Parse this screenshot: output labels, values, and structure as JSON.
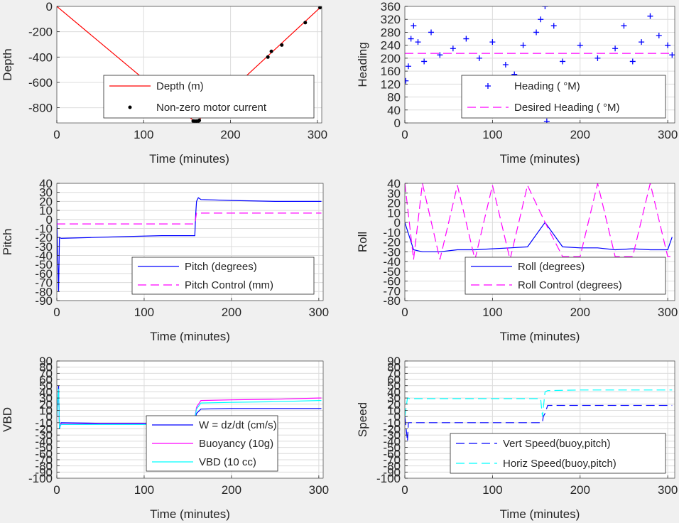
{
  "chart_data": [
    {
      "type": "line",
      "xlabel": "Time (minutes)",
      "ylabel": "Depth",
      "xlim": [
        0,
        305
      ],
      "ylim": [
        -920,
        0
      ],
      "xticks": [
        0,
        100,
        200,
        300
      ],
      "yticks": [
        0,
        -200,
        -400,
        -600,
        -800
      ],
      "legend_position": "bottom-center",
      "grid": true,
      "series": [
        {
          "name": "Depth (m)",
          "style": "solid",
          "color": "#ff0000",
          "x": [
            0,
            158,
            162,
            303
          ],
          "y": [
            0,
            -905,
            -905,
            -10
          ]
        },
        {
          "name": "Non-zero motor current",
          "style": "dots",
          "color": "#000000",
          "x": [
            157,
            159,
            161,
            163,
            164,
            243,
            247,
            259,
            286,
            303
          ],
          "y": [
            -905,
            -906,
            -906,
            -905,
            -900,
            -400,
            -355,
            -305,
            -128,
            -10
          ]
        }
      ]
    },
    {
      "type": "scatter",
      "xlabel": "Time (minutes)",
      "ylabel": "Heading",
      "xlim": [
        0,
        308
      ],
      "ylim": [
        0,
        360
      ],
      "xticks": [
        0,
        100,
        200,
        300
      ],
      "yticks": [
        0,
        40,
        80,
        120,
        160,
        200,
        240,
        280,
        320,
        360
      ],
      "legend_position": "bottom-right",
      "grid": true,
      "series": [
        {
          "name": "Heading ( °M)",
          "style": "plus",
          "color": "#0000ff",
          "x": [
            1,
            4,
            7,
            10,
            15,
            22,
            30,
            40,
            55,
            70,
            85,
            100,
            115,
            125,
            135,
            145,
            150,
            155,
            160,
            162,
            170,
            180,
            200,
            220,
            240,
            250,
            260,
            270,
            280,
            290,
            300,
            305
          ],
          "y": [
            130,
            175,
            260,
            300,
            250,
            190,
            280,
            210,
            230,
            260,
            200,
            250,
            180,
            150,
            240,
            130,
            280,
            320,
            360,
            5,
            300,
            190,
            240,
            200,
            230,
            300,
            190,
            250,
            330,
            270,
            240,
            210
          ]
        },
        {
          "name": "Desired Heading ( °M)",
          "style": "dashed",
          "color": "#ff00ff",
          "x": [
            0,
            150,
            160,
            305
          ],
          "y": [
            215,
            215,
            215,
            215
          ]
        }
      ]
    },
    {
      "type": "line",
      "xlabel": "Time (minutes)",
      "ylabel": "Pitch",
      "xlim": [
        0,
        305
      ],
      "ylim": [
        -90,
        40
      ],
      "xticks": [
        0,
        100,
        200,
        300
      ],
      "yticks": [
        40,
        30,
        20,
        10,
        0,
        -10,
        -20,
        -30,
        -40,
        -50,
        -60,
        -70,
        -80,
        -90
      ],
      "legend_position": "bottom-right",
      "grid": true,
      "series": [
        {
          "name": "Pitch (degrees)",
          "style": "solid",
          "color": "#0000ff",
          "x": [
            0,
            2,
            3,
            5,
            40,
            80,
            120,
            158,
            159,
            160,
            162,
            165,
            200,
            250,
            300,
            303
          ],
          "y": [
            0,
            -80,
            -20,
            -21,
            -20,
            -19,
            -18,
            -18,
            5,
            20,
            24,
            22,
            21,
            20,
            20,
            20
          ]
        },
        {
          "name": "Pitch Control (mm)",
          "style": "dashed",
          "color": "#ff00ff",
          "x": [
            0,
            3,
            10,
            158,
            160,
            303
          ],
          "y": [
            -5,
            -5,
            -5,
            -5,
            7,
            7
          ]
        }
      ]
    },
    {
      "type": "line",
      "xlabel": "Time (minutes)",
      "ylabel": "Roll",
      "xlim": [
        0,
        308
      ],
      "ylim": [
        -80,
        40
      ],
      "xticks": [
        0,
        100,
        200,
        300
      ],
      "yticks": [
        40,
        30,
        20,
        10,
        0,
        -10,
        -20,
        -30,
        -40,
        -50,
        -60,
        -70,
        -80
      ],
      "legend_position": "bottom-right",
      "grid": true,
      "series": [
        {
          "name": "Roll (degrees)",
          "style": "solid",
          "color": "#0000ff",
          "x": [
            0,
            10,
            20,
            40,
            60,
            80,
            100,
            120,
            140,
            160,
            180,
            200,
            220,
            240,
            260,
            280,
            300,
            305
          ],
          "y": [
            0,
            -28,
            -30,
            -30,
            -28,
            -28,
            -27,
            -26,
            -25,
            0,
            -25,
            -26,
            -26,
            -28,
            -27,
            -28,
            -28,
            -15
          ]
        },
        {
          "name": "Roll Control (degrees)",
          "style": "dashed",
          "color": "#ff00ff",
          "x": [
            0,
            10,
            20,
            40,
            60,
            80,
            100,
            120,
            140,
            160,
            180,
            200,
            220,
            240,
            260,
            280,
            300,
            305
          ],
          "y": [
            40,
            -38,
            40,
            -38,
            38,
            -38,
            38,
            -38,
            38,
            0,
            -35,
            -35,
            40,
            -35,
            -35,
            40,
            -35,
            -35
          ]
        }
      ]
    },
    {
      "type": "line",
      "xlabel": "Time (minutes)",
      "ylabel": "VBD",
      "xlim": [
        0,
        305
      ],
      "ylim": [
        -100,
        90
      ],
      "xticks": [
        0,
        100,
        200,
        300
      ],
      "yticks": [
        90,
        80,
        70,
        60,
        50,
        40,
        30,
        20,
        10,
        0,
        -10,
        -20,
        -30,
        -40,
        -50,
        -60,
        -70,
        -80,
        -90,
        -100
      ],
      "legend_position": "bottom-center",
      "grid": true,
      "series": [
        {
          "name": "W = dz/dt (cm/s)",
          "style": "solid",
          "color": "#0000ff",
          "x": [
            0,
            2,
            3,
            5,
            50,
            100,
            150,
            157,
            160,
            165,
            200,
            250,
            300,
            303
          ],
          "y": [
            0,
            50,
            -20,
            -10,
            -11,
            -11,
            -11,
            -10,
            5,
            12,
            13,
            13,
            13,
            13
          ]
        },
        {
          "name": "Buoyancy (10g)",
          "style": "solid",
          "color": "#ff00ff",
          "x": [
            0,
            2,
            3,
            5,
            50,
            100,
            150,
            157,
            160,
            165,
            200,
            250,
            300,
            303
          ],
          "y": [
            0,
            40,
            -15,
            -12,
            -12,
            -12,
            -12,
            -11,
            15,
            26,
            27,
            28,
            30,
            30
          ]
        },
        {
          "name": "VBD (10 cc)",
          "style": "solid",
          "color": "#00ffff",
          "x": [
            0,
            2,
            3,
            5,
            50,
            100,
            150,
            157,
            160,
            165,
            200,
            250,
            300,
            303
          ],
          "y": [
            0,
            45,
            -18,
            -13,
            -13,
            -13,
            -13,
            -12,
            12,
            22,
            23,
            24,
            26,
            26
          ]
        }
      ]
    },
    {
      "type": "line",
      "xlabel": "Time (minutes)",
      "ylabel": "Speed",
      "xlim": [
        0,
        308
      ],
      "ylim": [
        -100,
        90
      ],
      "xticks": [
        0,
        100,
        200,
        300
      ],
      "yticks": [
        90,
        80,
        70,
        60,
        50,
        40,
        30,
        20,
        10,
        0,
        -10,
        -20,
        -30,
        -40,
        -50,
        -60,
        -70,
        -80,
        -90,
        -100
      ],
      "legend_position": "bottom-right",
      "grid": true,
      "series": [
        {
          "name": "Vert Speed(buoy,pitch)",
          "style": "dashed",
          "color": "#0000ff",
          "x": [
            0,
            3,
            4,
            5,
            50,
            100,
            157,
            158,
            160,
            163,
            200,
            250,
            300,
            305
          ],
          "y": [
            0,
            -40,
            -10,
            -10,
            -10,
            -10,
            -10,
            0,
            5,
            18,
            18,
            18,
            18,
            18
          ]
        },
        {
          "name": "Horiz Speed(buoy,pitch)",
          "style": "dashed",
          "color": "#00ffff",
          "x": [
            0,
            3,
            4,
            5,
            50,
            100,
            155,
            157,
            160,
            163,
            200,
            250,
            300,
            305
          ],
          "y": [
            0,
            30,
            30,
            29,
            29,
            29,
            29,
            0,
            40,
            42,
            43,
            43,
            43,
            43
          ]
        }
      ]
    }
  ]
}
